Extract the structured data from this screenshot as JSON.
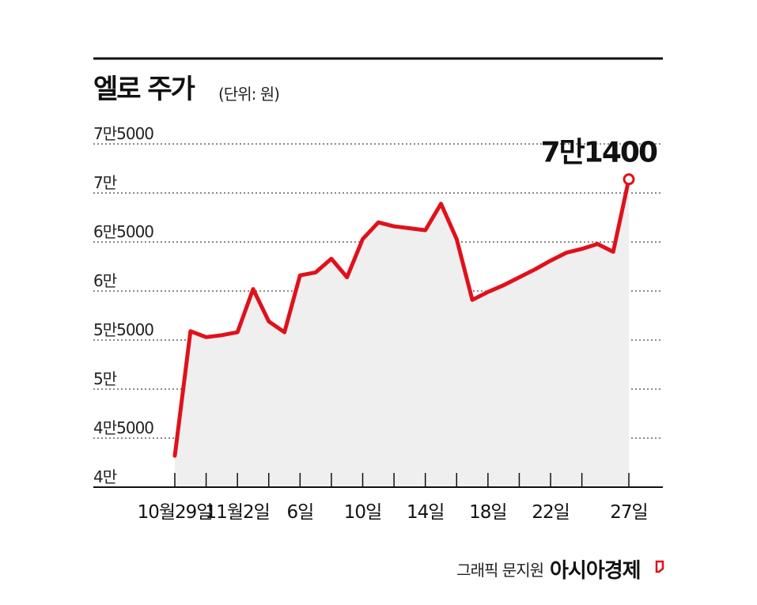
{
  "header": {
    "title": "엘로 주가",
    "unit": "(단위: 원)"
  },
  "footer": {
    "credit": "그래픽 문지원",
    "brand": "아시아경제"
  },
  "colors": {
    "line": "#e0111b",
    "area": "#efefef",
    "text": "#111111",
    "grid": "#444444"
  },
  "chart_data": {
    "type": "line",
    "title": "엘로 주가",
    "unit_label": "(단위: 원)",
    "ylim": [
      40000,
      75000
    ],
    "yticks": [
      40000,
      45000,
      50000,
      55000,
      60000,
      65000,
      70000,
      75000
    ],
    "ytick_labels": [
      "4만",
      "4만5000",
      "5만",
      "5만5000",
      "6만",
      "6만5000",
      "7만",
      "7만5000"
    ],
    "grid": "horizontal dotted",
    "xtick_labels": [
      "10월29일",
      "11월2일",
      "6일",
      "10일",
      "14일",
      "18일",
      "22일",
      "27일"
    ],
    "xtick_index": [
      0,
      4,
      8,
      12,
      16,
      20,
      24,
      29
    ],
    "values": [
      43200,
      55900,
      55300,
      55500,
      55800,
      60200,
      56900,
      55800,
      61600,
      61900,
      63300,
      61400,
      65300,
      67000,
      66600,
      66400,
      66200,
      68900,
      65300,
      59100,
      59900,
      60600,
      61400,
      62200,
      63100,
      63900,
      64300,
      64800,
      64000,
      71400
    ],
    "annotation": {
      "text": "7만1400",
      "index": 29,
      "value": 71400
    }
  }
}
